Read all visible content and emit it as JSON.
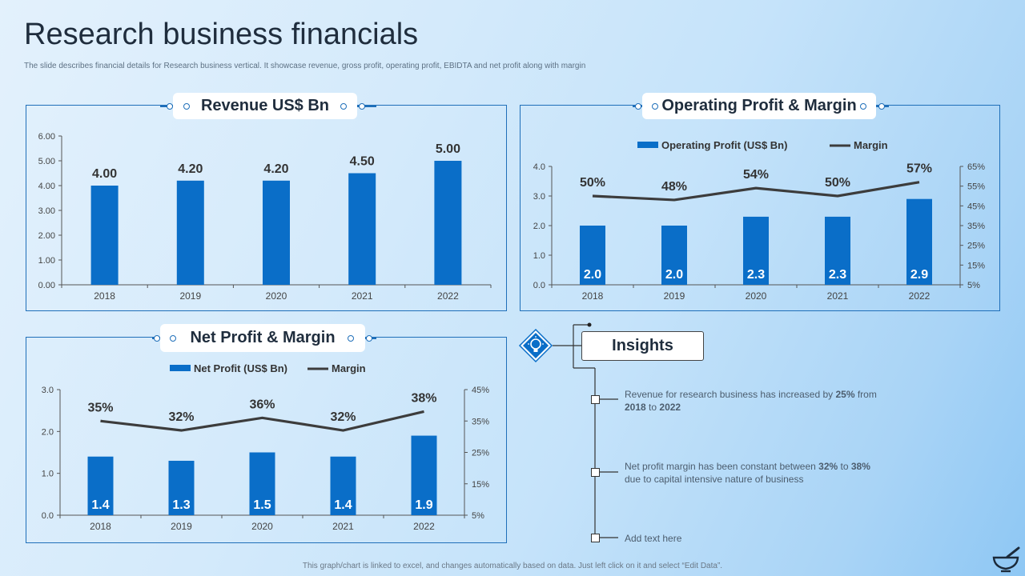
{
  "page": {
    "title": "Research business financials",
    "subtitle": "The slide describes financial details for Research business vertical. It showcase revenue, gross profit, operating profit, EBIDTA  and net profit along with margin",
    "footer": "This graph/chart is linked to excel, and changes automatically based on data. Just left click on it and select “Edit Data”."
  },
  "colors": {
    "bar": "#0a6ec8",
    "line": "#3c3c3c",
    "accent": "#1f6fb9"
  },
  "chart_data": [
    {
      "type": "bar",
      "title": "Revenue US$ Bn",
      "categories": [
        "2018",
        "2019",
        "2020",
        "2021",
        "2022"
      ],
      "values": [
        4.0,
        4.2,
        4.2,
        4.5,
        5.0
      ],
      "value_labels": [
        "4.00",
        "4.20",
        "4.20",
        "4.50",
        "5.00"
      ],
      "ylim": [
        0,
        6
      ],
      "yticks": [
        "0.00",
        "1.00",
        "2.00",
        "3.00",
        "4.00",
        "5.00",
        "6.00"
      ],
      "grid": false
    },
    {
      "type": "bar+line",
      "title": "Operating Profit & Margin",
      "categories": [
        "2018",
        "2019",
        "2020",
        "2021",
        "2022"
      ],
      "legend": {
        "bar": "Operating Profit  (US$ Bn)",
        "line": "Margin",
        "position": "top"
      },
      "series": [
        {
          "name": "Operating Profit  (US$ Bn)",
          "values": [
            2.0,
            2.0,
            2.3,
            2.3,
            2.9
          ],
          "labels": [
            "2.0",
            "2.0",
            "2.3",
            "2.3",
            "2.9"
          ]
        },
        {
          "name": "Margin",
          "values": [
            50,
            48,
            54,
            50,
            57
          ],
          "labels": [
            "50%",
            "48%",
            "54%",
            "50%",
            "57%"
          ]
        }
      ],
      "ylim": [
        0,
        4
      ],
      "yticks": [
        "0.0",
        "1.0",
        "2.0",
        "3.0",
        "4.0"
      ],
      "y2lim": [
        5,
        65
      ],
      "y2ticks": [
        "5%",
        "15%",
        "25%",
        "35%",
        "45%",
        "55%",
        "65%"
      ]
    },
    {
      "type": "bar+line",
      "title": "Net Profit & Margin",
      "categories": [
        "2018",
        "2019",
        "2020",
        "2021",
        "2022"
      ],
      "legend": {
        "bar": "Net Profit  (US$ Bn)",
        "line": "Margin",
        "position": "top"
      },
      "series": [
        {
          "name": "Net Profit  (US$ Bn)",
          "values": [
            1.4,
            1.3,
            1.5,
            1.4,
            1.9
          ],
          "labels": [
            "1.4",
            "1.3",
            "1.5",
            "1.4",
            "1.9"
          ]
        },
        {
          "name": "Margin",
          "values": [
            35,
            32,
            36,
            32,
            38
          ],
          "labels": [
            "35%",
            "32%",
            "36%",
            "32%",
            "38%"
          ]
        }
      ],
      "ylim": [
        0,
        3
      ],
      "yticks": [
        "0.0",
        "1.0",
        "2.0",
        "3.0"
      ],
      "y2lim": [
        5,
        45
      ],
      "y2ticks": [
        "5%",
        "15%",
        "25%",
        "35%",
        "45%"
      ]
    }
  ],
  "insights": {
    "title": "Insights",
    "icon": "lightbulb-diamond-icon",
    "items": [
      {
        "parts": [
          "Revenue  for research business has increased by ",
          "25%",
          " from ",
          "2018",
          " to ",
          "2022"
        ]
      },
      {
        "parts": [
          "Net profit margin has been constant between ",
          "32%",
          " to ",
          "38%",
          " due to capital intensive nature of business"
        ]
      },
      {
        "parts": [
          "Add text here"
        ]
      }
    ]
  },
  "corner_icon": "mortar-pestle-icon"
}
